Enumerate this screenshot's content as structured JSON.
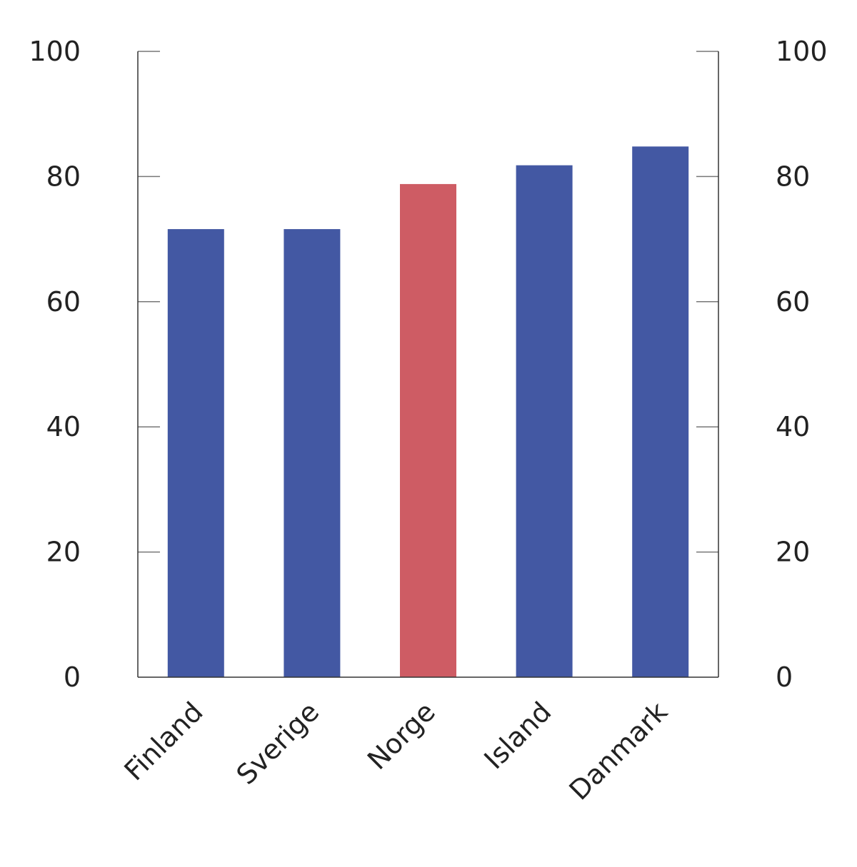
{
  "chart_data": {
    "type": "bar",
    "title": "",
    "xlabel": "",
    "ylabel": "",
    "categories": [
      "Finland",
      "Sverige",
      "Norge",
      "Island",
      "Danmark"
    ],
    "values": [
      71.6,
      71.6,
      78.8,
      81.8,
      84.8
    ],
    "highlight": "Norge",
    "ylim": [
      0,
      100
    ],
    "yticks": [
      0,
      20,
      40,
      60,
      80,
      100
    ],
    "y_axis_right_mirrored": true,
    "grid": false,
    "legend": "none",
    "colors": {
      "default": "#4358a3",
      "highlight": "#ce5c64",
      "axis": "#333333",
      "tick": "#777777"
    }
  }
}
